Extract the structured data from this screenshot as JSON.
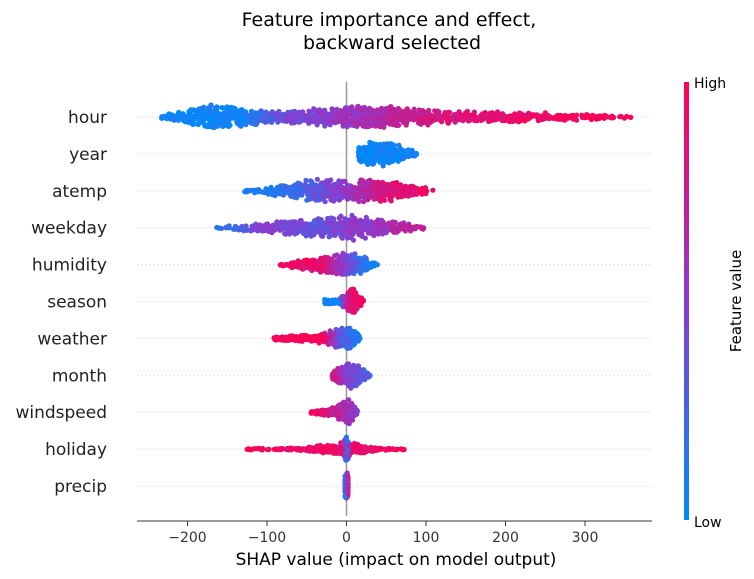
{
  "chart_data": {
    "type": "scatter",
    "subtype": "shap-beeswarm",
    "title": "Feature importance and effect,\nbackward selected",
    "xlabel": "SHAP value (impact on model output)",
    "xlim": [
      -260,
      385
    ],
    "xticks": [
      -200,
      -100,
      0,
      100,
      200,
      300
    ],
    "xtick_labels": [
      "−200",
      "−100",
      "0",
      "100",
      "200",
      "300"
    ],
    "grid": "dotted horizontal guide per feature",
    "zero_line": true,
    "colorbar": {
      "label": "Feature value",
      "high_label": "High",
      "low_label": "Low",
      "low_color": "#008bfb",
      "high_color": "#ff0052"
    },
    "features": [
      {
        "name": "hour",
        "min": -235,
        "max": 358,
        "density": [
          [
            -235,
            0.08
          ],
          [
            -200,
            0.55
          ],
          [
            -165,
            1.0
          ],
          [
            -130,
            0.7
          ],
          [
            -90,
            0.45
          ],
          [
            -50,
            0.55
          ],
          [
            -10,
            0.8
          ],
          [
            30,
            1.0
          ],
          [
            80,
            0.65
          ],
          [
            150,
            0.45
          ],
          [
            230,
            0.35
          ],
          [
            300,
            0.25
          ],
          [
            358,
            0.06
          ]
        ],
        "color": [
          [
            -235,
            0.02
          ],
          [
            -130,
            0.05
          ],
          [
            -90,
            0.35
          ],
          [
            -30,
            0.5
          ],
          [
            20,
            0.6
          ],
          [
            100,
            0.8
          ],
          [
            200,
            0.92
          ],
          [
            358,
            0.98
          ]
        ],
        "count": 1300
      },
      {
        "name": "year",
        "min": 15,
        "max": 92,
        "density": [
          [
            15,
            0.6
          ],
          [
            30,
            1.0
          ],
          [
            55,
            0.8
          ],
          [
            75,
            0.5
          ],
          [
            92,
            0.1
          ]
        ],
        "color": [
          [
            15,
            0.03
          ],
          [
            92,
            0.05
          ]
        ],
        "count": 420
      },
      {
        "name": "atemp",
        "min": -130,
        "max": 115,
        "density": [
          [
            -130,
            0.08
          ],
          [
            -80,
            0.45
          ],
          [
            -40,
            0.9
          ],
          [
            0,
            0.8
          ],
          [
            40,
            1.0
          ],
          [
            80,
            0.55
          ],
          [
            115,
            0.05
          ]
        ],
        "color": [
          [
            -130,
            0.08
          ],
          [
            -60,
            0.22
          ],
          [
            -20,
            0.45
          ],
          [
            10,
            0.6
          ],
          [
            50,
            0.85
          ],
          [
            115,
            0.95
          ]
        ],
        "count": 620
      },
      {
        "name": "weekday",
        "min": -165,
        "max": 100,
        "density": [
          [
            -165,
            0.05
          ],
          [
            -110,
            0.35
          ],
          [
            -60,
            0.6
          ],
          [
            -20,
            0.85
          ],
          [
            0,
            1.0
          ],
          [
            30,
            0.75
          ],
          [
            70,
            0.45
          ],
          [
            100,
            0.05
          ]
        ],
        "color": [
          [
            -165,
            0.1
          ],
          [
            -100,
            0.5
          ],
          [
            -40,
            0.35
          ],
          [
            0,
            0.5
          ],
          [
            40,
            0.55
          ],
          [
            100,
            0.8
          ]
        ],
        "count": 600
      },
      {
        "name": "humidity",
        "min": -85,
        "max": 40,
        "density": [
          [
            -85,
            0.05
          ],
          [
            -50,
            0.45
          ],
          [
            -20,
            0.7
          ],
          [
            0,
            1.0
          ],
          [
            20,
            0.65
          ],
          [
            40,
            0.05
          ]
        ],
        "color": [
          [
            -85,
            0.95
          ],
          [
            -30,
            0.88
          ],
          [
            0,
            0.45
          ],
          [
            20,
            0.15
          ],
          [
            40,
            0.05
          ]
        ],
        "count": 520
      },
      {
        "name": "season",
        "min": -28,
        "max": 22,
        "density": [
          [
            -28,
            0.2
          ],
          [
            -12,
            0.15
          ],
          [
            0,
            0.6
          ],
          [
            8,
            1.0
          ],
          [
            22,
            0.1
          ]
        ],
        "color": [
          [
            -28,
            0.02
          ],
          [
            -10,
            0.05
          ],
          [
            0,
            0.8
          ],
          [
            22,
            0.98
          ]
        ],
        "count": 380
      },
      {
        "name": "weather",
        "min": -92,
        "max": 18,
        "density": [
          [
            -92,
            0.15
          ],
          [
            -40,
            0.3
          ],
          [
            -5,
            0.8
          ],
          [
            5,
            1.0
          ],
          [
            18,
            0.1
          ]
        ],
        "color": [
          [
            -92,
            0.98
          ],
          [
            -30,
            0.95
          ],
          [
            -5,
            0.25
          ],
          [
            18,
            0.05
          ]
        ],
        "count": 430
      },
      {
        "name": "month",
        "min": -18,
        "max": 32,
        "density": [
          [
            -18,
            0.35
          ],
          [
            -5,
            0.8
          ],
          [
            5,
            1.0
          ],
          [
            20,
            0.55
          ],
          [
            32,
            0.05
          ]
        ],
        "color": [
          [
            -18,
            0.85
          ],
          [
            0,
            0.5
          ],
          [
            20,
            0.3
          ],
          [
            32,
            0.35
          ]
        ],
        "count": 380
      },
      {
        "name": "windspeed",
        "min": -45,
        "max": 14,
        "density": [
          [
            -45,
            0.1
          ],
          [
            -20,
            0.3
          ],
          [
            -5,
            0.7
          ],
          [
            2,
            1.0
          ],
          [
            14,
            0.2
          ]
        ],
        "color": [
          [
            -45,
            0.95
          ],
          [
            -10,
            0.7
          ],
          [
            5,
            0.55
          ],
          [
            14,
            0.5
          ]
        ],
        "count": 330
      },
      {
        "name": "holiday",
        "min": -125,
        "max": 80,
        "density": [
          [
            -125,
            0.05
          ],
          [
            -60,
            0.1
          ],
          [
            -5,
            0.5
          ],
          [
            0,
            1.0
          ],
          [
            5,
            0.5
          ],
          [
            40,
            0.1
          ],
          [
            80,
            0.05
          ]
        ],
        "color": [
          [
            -125,
            0.98
          ],
          [
            -5,
            0.9
          ],
          [
            0,
            0.03
          ],
          [
            5,
            0.9
          ],
          [
            80,
            0.98
          ]
        ],
        "count": 380
      },
      {
        "name": "precip",
        "min": -2,
        "max": 2,
        "density": [
          [
            -2,
            1.0
          ],
          [
            2,
            1.0
          ]
        ],
        "color": [
          [
            -2,
            0.05
          ],
          [
            0,
            0.5
          ],
          [
            2,
            0.9
          ]
        ],
        "count": 160
      }
    ]
  }
}
